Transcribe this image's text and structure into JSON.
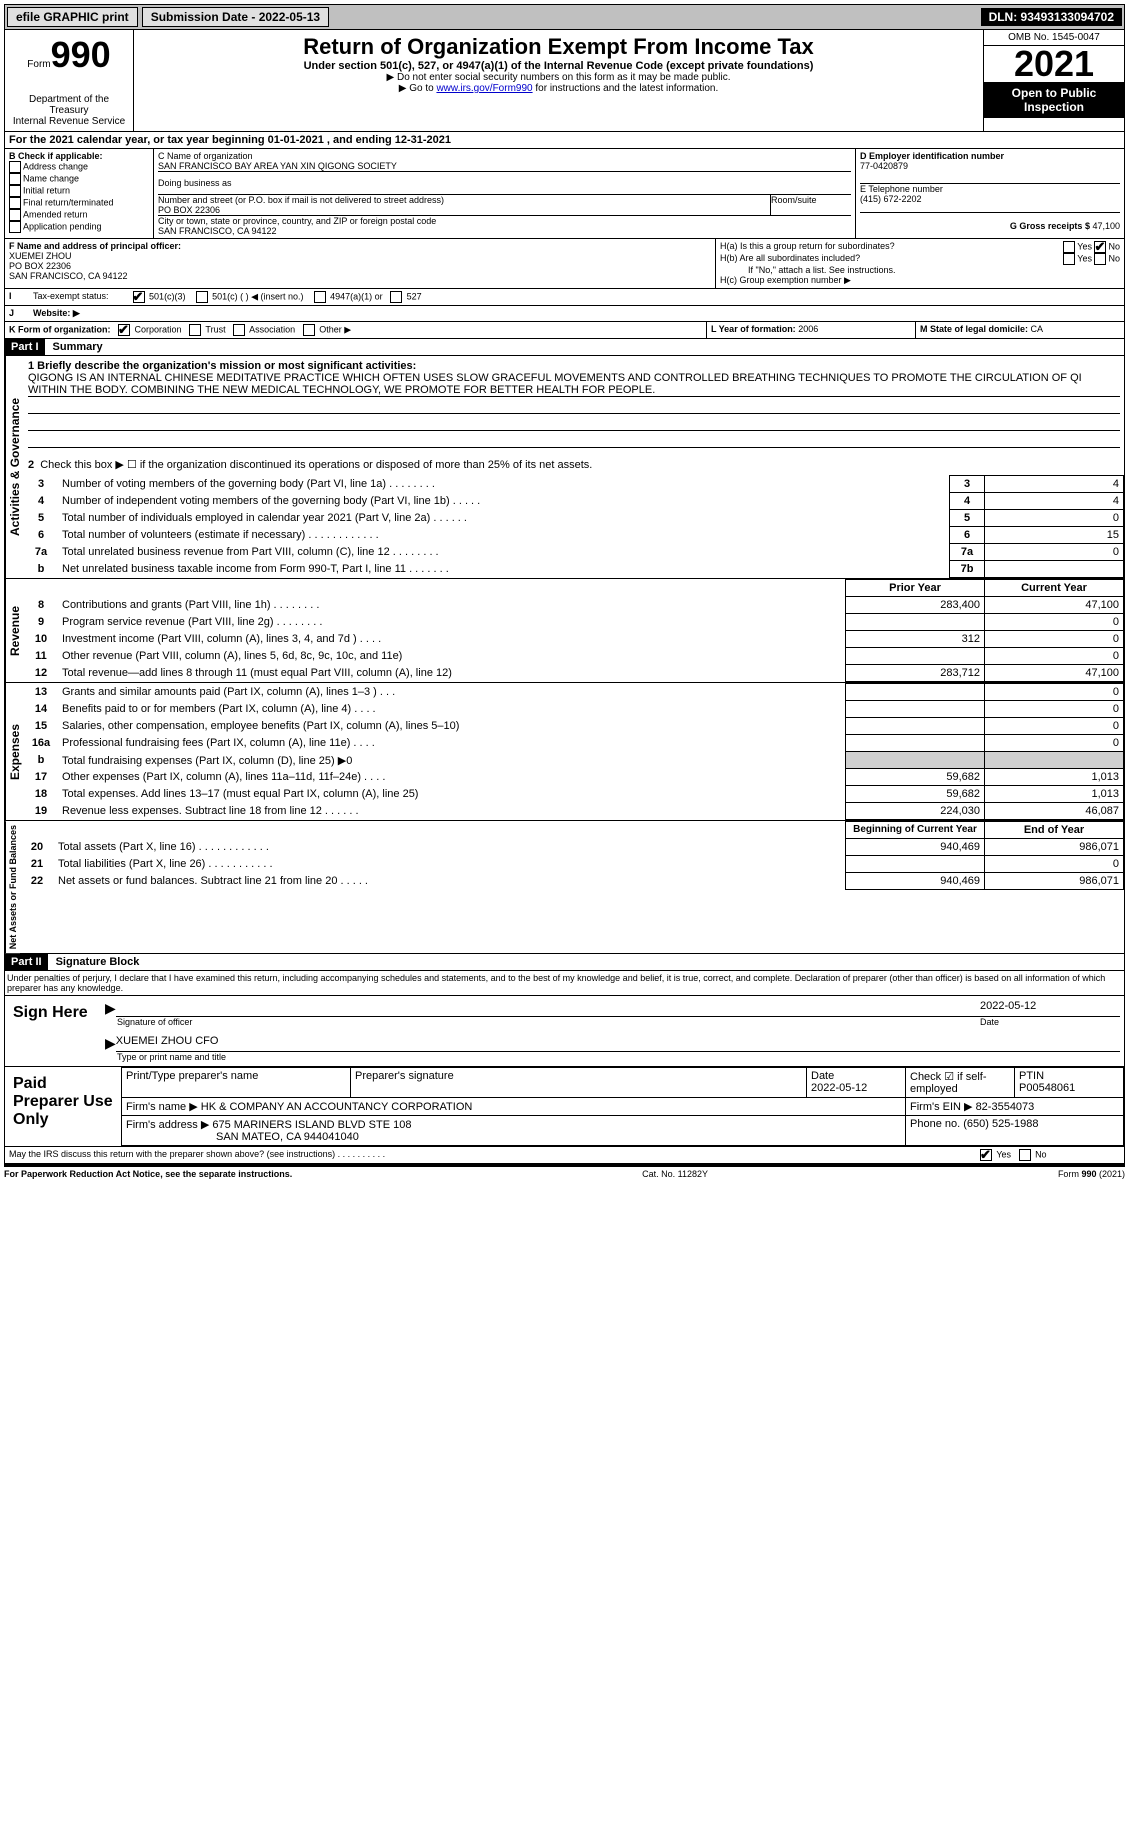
{
  "topbar": {
    "efile": "efile GRAPHIC print",
    "submission": "Submission Date - 2022-05-13",
    "dln": "DLN: 93493133094702"
  },
  "header": {
    "form_prefix": "Form",
    "form_num": "990",
    "title": "Return of Organization Exempt From Income Tax",
    "sub1": "Under section 501(c), 527, or 4947(a)(1) of the Internal Revenue Code (except private foundations)",
    "note1": "▶ Do not enter social security numbers on this form as it may be made public.",
    "note2_pre": "▶ Go to ",
    "note2_link": "www.irs.gov/Form990",
    "note2_post": " for instructions and the latest information.",
    "dept": "Department of the Treasury",
    "irs": "Internal Revenue Service",
    "omb": "OMB No. 1545-0047",
    "year": "2021",
    "open": "Open to Public Inspection"
  },
  "line_a": "For the 2021 calendar year, or tax year beginning 01-01-2021   , and ending 12-31-2021",
  "box_b": {
    "title": "B Check if applicable:",
    "items": [
      "Address change",
      "Name change",
      "Initial return",
      "Final return/terminated",
      "Amended return",
      "Application pending"
    ]
  },
  "box_c": {
    "label_name": "C Name of organization",
    "org_name": "SAN FRANCISCO BAY AREA YAN XIN QIGONG SOCIETY",
    "dba_label": "Doing business as",
    "addr_label": "Number and street (or P.O. box if mail is not delivered to street address)",
    "room_label": "Room/suite",
    "addr": "PO BOX 22306",
    "city_label": "City or town, state or province, country, and ZIP or foreign postal code",
    "city": "SAN FRANCISCO, CA  94122"
  },
  "box_d": {
    "label": "D Employer identification number",
    "val": "77-0420879"
  },
  "box_e": {
    "label": "E Telephone number",
    "val": "(415) 672-2202"
  },
  "box_g": {
    "label": "G Gross receipts $",
    "val": "47,100"
  },
  "box_f": {
    "label": "F  Name and address of principal officer:",
    "name": "XUEMEI ZHOU",
    "addr": "PO BOX 22306",
    "city": "SAN FRANCISCO, CA  94122"
  },
  "box_h": {
    "a": "H(a)  Is this a group return for subordinates?",
    "b": "H(b)  Are all subordinates included?",
    "b_note": "If \"No,\" attach a list. See instructions.",
    "c": "H(c)  Group exemption number ▶",
    "yes": "Yes",
    "no": "No"
  },
  "box_i": {
    "label": "Tax-exempt status:",
    "opts": [
      "501(c)(3)",
      "501(c) (  ) ◀ (insert no.)",
      "4947(a)(1) or",
      "527"
    ]
  },
  "box_j": {
    "label": "Website: ▶"
  },
  "box_k": {
    "label": "K Form of organization:",
    "opts": [
      "Corporation",
      "Trust",
      "Association",
      "Other ▶"
    ]
  },
  "box_l": {
    "label": "L Year of formation:",
    "val": "2006"
  },
  "box_m": {
    "label": "M State of legal domicile:",
    "val": "CA"
  },
  "part1": {
    "tag": "Part I",
    "title": "Summary"
  },
  "mission": {
    "label": "1  Briefly describe the organization's mission or most significant activities:",
    "text": "QIGONG IS AN INTERNAL CHINESE MEDITATIVE PRACTICE WHICH OFTEN USES SLOW GRACEFUL MOVEMENTS AND CONTROLLED BREATHING TECHNIQUES TO PROMOTE THE CIRCULATION OF QI WITHIN THE BODY. COMBINING THE NEW MEDICAL TECHNOLOGY, WE PROMOTE FOR BETTER HEALTH FOR PEOPLE."
  },
  "gov_section_label": "Activities & Governance",
  "rev_section_label": "Revenue",
  "exp_section_label": "Expenses",
  "net_section_label": "Net Assets or Fund Balances",
  "line2": "Check this box ▶ ☐  if the organization discontinued its operations or disposed of more than 25% of its net assets.",
  "lines_gov": [
    {
      "n": "3",
      "t": "Number of voting members of the governing body (Part VI, line 1a)  .    .    .    .    .    .    .    .",
      "bn": "3",
      "v": "4"
    },
    {
      "n": "4",
      "t": "Number of independent voting members of the governing body (Part VI, line 1b)  .    .    .    .    .",
      "bn": "4",
      "v": "4"
    },
    {
      "n": "5",
      "t": "Total number of individuals employed in calendar year 2021 (Part V, line 2a)  .    .    .    .    .    .",
      "bn": "5",
      "v": "0"
    },
    {
      "n": "6",
      "t": "Total number of volunteers (estimate if necessary)    .    .    .    .    .    .    .    .    .    .    .    .",
      "bn": "6",
      "v": "15"
    },
    {
      "n": "7a",
      "t": "Total unrelated business revenue from Part VIII, column (C), line 12    .    .    .    .    .    .    .    .",
      "bn": "7a",
      "v": "0"
    },
    {
      "n": "b",
      "t": "Net unrelated business taxable income from Form 990-T, Part I, line 11  .    .    .    .    .    .    .",
      "bn": "7b",
      "v": ""
    }
  ],
  "col_headers": {
    "prior": "Prior Year",
    "current": "Current Year",
    "begin": "Beginning of Current Year",
    "end": "End of Year"
  },
  "lines_rev": [
    {
      "n": "8",
      "t": "Contributions and grants (Part VIII, line 1h)   .    .    .    .    .    .    .    .",
      "p": "283,400",
      "c": "47,100"
    },
    {
      "n": "9",
      "t": "Program service revenue (Part VIII, line 2g)   .    .    .    .    .    .    .    .",
      "p": "",
      "c": "0"
    },
    {
      "n": "10",
      "t": "Investment income (Part VIII, column (A), lines 3, 4, and 7d )   .    .    .    .",
      "p": "312",
      "c": "0"
    },
    {
      "n": "11",
      "t": "Other revenue (Part VIII, column (A), lines 5, 6d, 8c, 9c, 10c, and 11e)",
      "p": "",
      "c": "0"
    },
    {
      "n": "12",
      "t": "Total revenue—add lines 8 through 11 (must equal Part VIII, column (A), line 12)",
      "p": "283,712",
      "c": "47,100"
    }
  ],
  "lines_exp": [
    {
      "n": "13",
      "t": "Grants and similar amounts paid (Part IX, column (A), lines 1–3 )  .    .    .",
      "p": "",
      "c": "0"
    },
    {
      "n": "14",
      "t": "Benefits paid to or for members (Part IX, column (A), line 4)  .    .    .    .",
      "p": "",
      "c": "0"
    },
    {
      "n": "15",
      "t": "Salaries, other compensation, employee benefits (Part IX, column (A), lines 5–10)",
      "p": "",
      "c": "0"
    },
    {
      "n": "16a",
      "t": "Professional fundraising fees (Part IX, column (A), line 11e)  .    .    .    .",
      "p": "",
      "c": "0"
    },
    {
      "n": "b",
      "t": "Total fundraising expenses (Part IX, column (D), line 25) ▶0",
      "p": "SHADE",
      "c": "SHADE"
    },
    {
      "n": "17",
      "t": "Other expenses (Part IX, column (A), lines 11a–11d, 11f–24e)  .    .    .    .",
      "p": "59,682",
      "c": "1,013"
    },
    {
      "n": "18",
      "t": "Total expenses. Add lines 13–17 (must equal Part IX, column (A), line 25)",
      "p": "59,682",
      "c": "1,013"
    },
    {
      "n": "19",
      "t": "Revenue less expenses. Subtract line 18 from line 12  .    .    .    .    .    .",
      "p": "224,030",
      "c": "46,087"
    }
  ],
  "lines_net": [
    {
      "n": "20",
      "t": "Total assets (Part X, line 16)  .    .    .    .    .    .    .    .    .    .    .    .",
      "p": "940,469",
      "c": "986,071"
    },
    {
      "n": "21",
      "t": "Total liabilities (Part X, line 26)  .    .    .    .    .    .    .    .    .    .    .",
      "p": "",
      "c": "0"
    },
    {
      "n": "22",
      "t": "Net assets or fund balances. Subtract line 21 from line 20  .    .    .    .    .",
      "p": "940,469",
      "c": "986,071"
    }
  ],
  "part2": {
    "tag": "Part II",
    "title": "Signature Block"
  },
  "penalty": "Under penalties of perjury, I declare that I have examined this return, including accompanying schedules and statements, and to the best of my knowledge and belief, it is true, correct, and complete. Declaration of preparer (other than officer) is based on all information of which preparer has any knowledge.",
  "sign": {
    "here": "Sign Here",
    "sig_label": "Signature of officer",
    "date_label": "Date",
    "date": "2022-05-12",
    "name": "XUEMEI ZHOU CFO",
    "name_label": "Type or print name and title"
  },
  "paid": {
    "title": "Paid Preparer Use Only",
    "h1": "Print/Type preparer's name",
    "h2": "Preparer's signature",
    "h3": "Date",
    "h4": "Check ☑ if self-employed",
    "h5": "PTIN",
    "date": "2022-05-12",
    "ptin": "P00548061",
    "firm_l": "Firm's name    ▶",
    "firm": "HK & COMPANY AN ACCOUNTANCY CORPORATION",
    "ein_l": "Firm's EIN ▶",
    "ein": "82-3554073",
    "addr_l": "Firm's address ▶",
    "addr1": "675 MARINERS ISLAND BLVD STE 108",
    "addr2": "SAN MATEO, CA  944041040",
    "phone_l": "Phone no.",
    "phone": "(650) 525-1988"
  },
  "discuss": "May the IRS discuss this return with the preparer shown above? (see instructions)   .    .    .    .    .    .    .    .    .    .",
  "footer": {
    "l": "For Paperwork Reduction Act Notice, see the separate instructions.",
    "m": "Cat. No. 11282Y",
    "r": "Form 990 (2021)"
  }
}
